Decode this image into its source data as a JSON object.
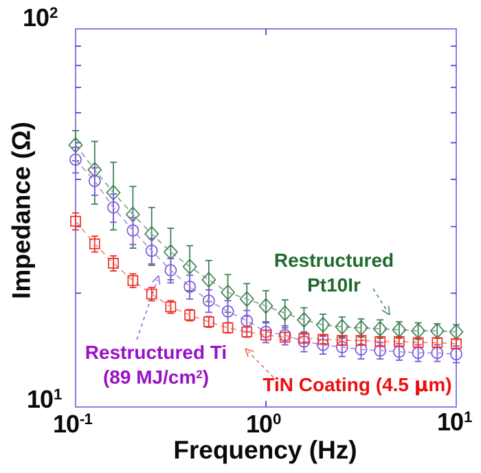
{
  "figure": {
    "y_axis_title": "Impedance (Ω)",
    "x_axis_title": "Frequency (Hz)",
    "y_tick_labels": [
      {
        "base": "10",
        "exp": "2"
      },
      {
        "base": "10",
        "exp": "1"
      }
    ],
    "x_tick_labels": [
      {
        "base": "10",
        "exp": "-1"
      },
      {
        "base": "10",
        "exp": "0"
      },
      {
        "base": "10",
        "exp": "1"
      }
    ],
    "frame_color": "#8282e6",
    "tick_color": "#4848d2",
    "text_color": "#0a0a0a"
  },
  "annotations": {
    "pt10ir": {
      "line1": "Restructured",
      "line2": "Pt10Ir",
      "color": "#1e6b2e",
      "arrow_color": "#4e8f63",
      "arrow": {
        "from": [
          543,
          420
        ],
        "to": [
          567,
          458
        ]
      }
    },
    "ti": {
      "line1": "Restructured Ti",
      "line2_pre": "(89 MJ/cm",
      "line2_sup": "2",
      "line2_post": ")",
      "color": "#9a10c6",
      "arrow_color": "#9b6fe0",
      "arrow": {
        "from": [
          199,
          494
        ],
        "to": [
          231,
          401
        ]
      }
    },
    "tin": {
      "pre": "TiN Coating (4.5 ",
      "mu": "μ",
      "post": "m)",
      "color": "#ec1111",
      "arrow_color": "#f06a60",
      "arrow": {
        "from": [
          398,
          549
        ],
        "to": [
          357,
          507
        ]
      }
    }
  },
  "chart_data": {
    "type": "line",
    "title": "",
    "xlabel": "Frequency (Hz)",
    "ylabel": "Impedance (Ω)",
    "x_scale": "log",
    "y_scale": "log",
    "xlim": [
      0.1,
      10
    ],
    "ylim": [
      10,
      100
    ],
    "grid": false,
    "legend": "annotated-labels-with-arrows",
    "x_major_ticks": [
      0.1,
      1,
      10
    ],
    "y_major_ticks": [
      10,
      100
    ],
    "y_minor_ticks": [
      20,
      30,
      40,
      50,
      60,
      70,
      80,
      90
    ],
    "x": [
      0.1,
      0.126,
      0.158,
      0.2,
      0.251,
      0.316,
      0.398,
      0.501,
      0.631,
      0.794,
      1.0,
      1.259,
      1.585,
      1.995,
      2.512,
      3.162,
      3.981,
      5.012,
      6.31,
      7.943,
      10.0
    ],
    "series": [
      {
        "id": "pt10ir",
        "name": "Restructured Pt10Ir",
        "marker": "diamond",
        "line_style": "dashed",
        "color": "#3f8157",
        "line_color": "#77a98b",
        "values": [
          49.3,
          42.4,
          36.9,
          32.3,
          28.7,
          25.7,
          23.5,
          21.7,
          20.1,
          19.3,
          18.5,
          17.7,
          17.0,
          16.5,
          16.3,
          16.2,
          16.1,
          16.0,
          15.9,
          15.9,
          15.8
        ],
        "errors": [
          4.5,
          8.0,
          7.5,
          6.0,
          5.0,
          4.0,
          3.2,
          2.7,
          2.3,
          1.9,
          1.8,
          1.5,
          1.3,
          1.1,
          1.0,
          0.9,
          0.9,
          0.8,
          0.8,
          0.7,
          0.7
        ]
      },
      {
        "id": "ti",
        "name": "Restructured Ti (89 MJ/cm²)",
        "marker": "circle",
        "line_style": "dashed",
        "color": "#7a55dc",
        "line_color": "#a78fe9",
        "values": [
          45.1,
          39.6,
          33.7,
          29.3,
          25.9,
          23.0,
          20.8,
          19.1,
          17.9,
          16.9,
          15.8,
          15.5,
          14.9,
          14.6,
          14.4,
          14.2,
          14.1,
          14.0,
          13.9,
          13.9,
          13.8
        ],
        "errors": [
          3.5,
          3.3,
          2.9,
          2.4,
          2.0,
          1.7,
          1.5,
          1.3,
          1.2,
          1.1,
          1.0,
          0.9,
          0.9,
          0.8,
          0.8,
          0.8,
          0.7,
          0.7,
          0.7,
          0.7,
          0.7
        ]
      },
      {
        "id": "tin",
        "name": "TiN Coating (4.5 μm)",
        "marker": "square",
        "line_style": "dashed",
        "color": "#ee2e24",
        "line_color": "#f5857c",
        "values": [
          31.0,
          27.0,
          24.0,
          21.6,
          19.9,
          18.4,
          17.5,
          16.8,
          16.2,
          15.8,
          15.5,
          15.3,
          15.2,
          15.1,
          15.0,
          15.0,
          14.9,
          14.9,
          14.8,
          14.8,
          14.7
        ],
        "errors": [
          1.6,
          1.3,
          1.1,
          0.9,
          0.8,
          0.7,
          0.6,
          0.55,
          0.5,
          0.5,
          0.45,
          0.45,
          0.4,
          0.4,
          0.4,
          0.4,
          0.4,
          0.4,
          0.4,
          0.4,
          0.4
        ]
      }
    ]
  }
}
